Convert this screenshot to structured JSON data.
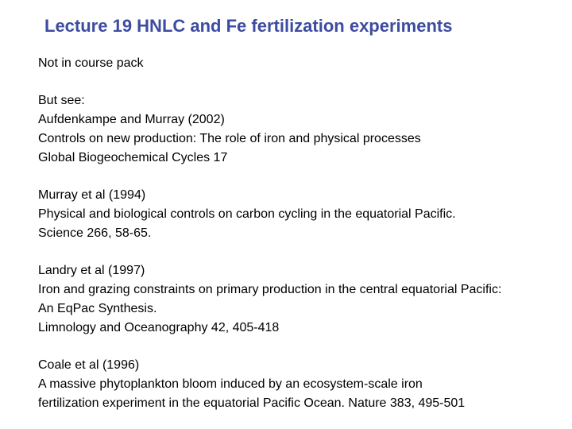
{
  "title": "Lecture 19 HNLC and Fe fertilization experiments",
  "title_color": "#3d4ca0",
  "title_fontsize": 22,
  "body_fontsize": 16,
  "body_color": "#000000",
  "background_color": "#ffffff",
  "paragraphs": [
    {
      "lines": [
        "Not in course pack"
      ]
    },
    {
      "lines": [
        "But see:",
        "Aufdenkampe and Murray (2002)",
        "Controls on new production: The role of iron and physical processes",
        "Global Biogeochemical Cycles 17"
      ]
    },
    {
      "lines": [
        "Murray et al (1994)",
        "Physical and biological controls on carbon cycling in the equatorial Pacific.",
        "Science 266, 58-65."
      ]
    },
    {
      "lines": [
        "Landry et al (1997)",
        "Iron and grazing constraints on primary production in the central equatorial Pacific:",
        "An EqPac Synthesis.",
        "Limnology and Oceanography 42, 405-418"
      ]
    },
    {
      "lines": [
        "Coale et al (1996)",
        "A massive phytoplankton bloom induced by an ecosystem-scale iron",
        "fertilization experiment in the equatorial Pacific Ocean. Nature 383, 495-501"
      ]
    }
  ]
}
